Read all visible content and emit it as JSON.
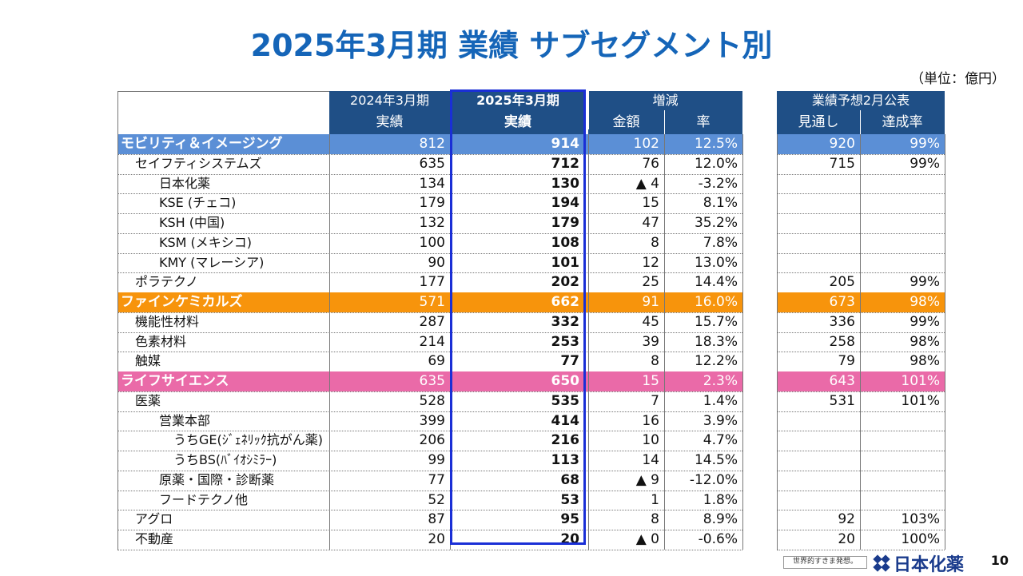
{
  "title": "2025年3月期 業績 サブセグメント別",
  "unit": "（単位：億円）",
  "headers": {
    "col_prev": "2024年3月期",
    "col_curr": "2025年3月期",
    "col_diff": "増減",
    "col_fcst": "業績予想2月公表",
    "sub_prev": "実績",
    "sub_curr": "実績",
    "sub_amount": "金額",
    "sub_rate": "率",
    "sub_outlook": "見通し",
    "sub_achieve": "達成率"
  },
  "colors": {
    "title": "#1565b8",
    "header": "#1f4f86",
    "mobility": "#5b8fd6",
    "fine_chem": "#f7940c",
    "life_sci": "#ea6aa8",
    "frame": "#1a2fd6",
    "logo": "#1a3b8c"
  },
  "rows": [
    {
      "name": "モビリティ＆イメージング",
      "indent": 0,
      "seg": "mobility",
      "prev": "812",
      "curr": "914",
      "amount": "102",
      "rate": "12.5%",
      "outlook": "920",
      "achieve": "99%"
    },
    {
      "name": "セイフティシステムズ",
      "indent": 1,
      "seg": "",
      "prev": "635",
      "curr": "712",
      "amount": "76",
      "rate": "12.0%",
      "outlook": "715",
      "achieve": "99%"
    },
    {
      "name": "日本化薬",
      "indent": 2,
      "seg": "",
      "prev": "134",
      "curr": "130",
      "amount": "▲ 4",
      "rate": "-3.2%",
      "outlook": "",
      "achieve": ""
    },
    {
      "name": "KSE (チェコ)",
      "indent": 2,
      "seg": "",
      "prev": "179",
      "curr": "194",
      "amount": "15",
      "rate": "8.1%",
      "outlook": "",
      "achieve": ""
    },
    {
      "name": "KSH (中国)",
      "indent": 2,
      "seg": "",
      "prev": "132",
      "curr": "179",
      "amount": "47",
      "rate": "35.2%",
      "outlook": "",
      "achieve": ""
    },
    {
      "name": "KSM (メキシコ)",
      "indent": 2,
      "seg": "",
      "prev": "100",
      "curr": "108",
      "amount": "8",
      "rate": "7.8%",
      "outlook": "",
      "achieve": ""
    },
    {
      "name": "KMY (マレーシア)",
      "indent": 2,
      "seg": "",
      "prev": "90",
      "curr": "101",
      "amount": "12",
      "rate": "13.0%",
      "outlook": "",
      "achieve": ""
    },
    {
      "name": "ポラテクノ",
      "indent": 1,
      "seg": "",
      "prev": "177",
      "curr": "202",
      "amount": "25",
      "rate": "14.4%",
      "outlook": "205",
      "achieve": "99%"
    },
    {
      "name": "ファインケミカルズ",
      "indent": 0,
      "seg": "fine_chem",
      "prev": "571",
      "curr": "662",
      "amount": "91",
      "rate": "16.0%",
      "outlook": "673",
      "achieve": "98%"
    },
    {
      "name": "機能性材料",
      "indent": 1,
      "seg": "",
      "prev": "287",
      "curr": "332",
      "amount": "45",
      "rate": "15.7%",
      "outlook": "336",
      "achieve": "99%"
    },
    {
      "name": "色素材料",
      "indent": 1,
      "seg": "",
      "prev": "214",
      "curr": "253",
      "amount": "39",
      "rate": "18.3%",
      "outlook": "258",
      "achieve": "98%"
    },
    {
      "name": "触媒",
      "indent": 1,
      "seg": "",
      "prev": "69",
      "curr": "77",
      "amount": "8",
      "rate": "12.2%",
      "outlook": "79",
      "achieve": "98%"
    },
    {
      "name": "ライフサイエンス",
      "indent": 0,
      "seg": "life_sci",
      "prev": "635",
      "curr": "650",
      "amount": "15",
      "rate": "2.3%",
      "outlook": "643",
      "achieve": "101%"
    },
    {
      "name": "医薬",
      "indent": 1,
      "seg": "",
      "prev": "528",
      "curr": "535",
      "amount": "7",
      "rate": "1.4%",
      "outlook": "531",
      "achieve": "101%"
    },
    {
      "name": "営業本部",
      "indent": 2,
      "seg": "",
      "prev": "399",
      "curr": "414",
      "amount": "16",
      "rate": "3.9%",
      "outlook": "",
      "achieve": ""
    },
    {
      "name": "うちGE(ｼﾞｪﾈﾘｯｸ抗がん薬)",
      "indent": 3,
      "seg": "",
      "prev": "206",
      "curr": "216",
      "amount": "10",
      "rate": "4.7%",
      "outlook": "",
      "achieve": ""
    },
    {
      "name": "うちBS(ﾊﾞｲｵｼﾐﾗｰ)",
      "indent": 3,
      "seg": "",
      "prev": "99",
      "curr": "113",
      "amount": "14",
      "rate": "14.5%",
      "outlook": "",
      "achieve": ""
    },
    {
      "name": "原薬・国際・診断薬",
      "indent": 2,
      "seg": "",
      "prev": "77",
      "curr": "68",
      "amount": "▲ 9",
      "rate": "-12.0%",
      "outlook": "",
      "achieve": ""
    },
    {
      "name": "フードテクノ他",
      "indent": 2,
      "seg": "",
      "prev": "52",
      "curr": "53",
      "amount": "1",
      "rate": "1.8%",
      "outlook": "",
      "achieve": ""
    },
    {
      "name": "アグロ",
      "indent": 1,
      "seg": "",
      "prev": "87",
      "curr": "95",
      "amount": "8",
      "rate": "8.9%",
      "outlook": "92",
      "achieve": "103%"
    },
    {
      "name": "不動産",
      "indent": 1,
      "seg": "",
      "prev": "20",
      "curr": "20",
      "amount": "▲ 0",
      "rate": "-0.6%",
      "outlook": "20",
      "achieve": "100%"
    }
  ],
  "footer": {
    "slogan": "世界的すきま発想。",
    "logo_text": "日本化薬",
    "page_number": "10"
  }
}
